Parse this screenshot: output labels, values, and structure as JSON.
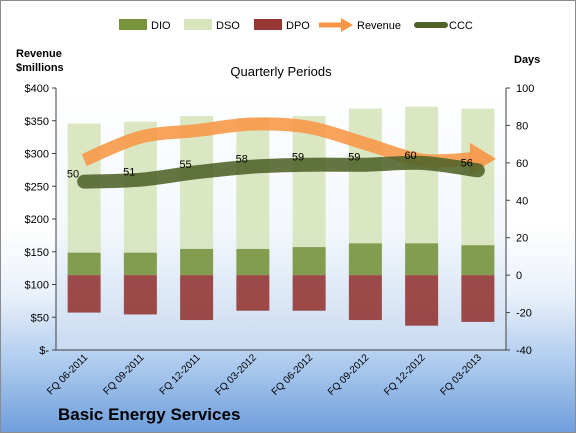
{
  "chart_data": {
    "type": "bar",
    "subtitle": "Quarterly Periods",
    "left_axis": {
      "label_line1": "Revenue",
      "label_line2": "$millions",
      "ylim": [
        0,
        400
      ],
      "ticks": [
        "$-",
        "$50",
        "$100",
        "$150",
        "$200",
        "$250",
        "$300",
        "$350",
        "$400"
      ]
    },
    "right_axis": {
      "label": "Days",
      "ylim": [
        -40,
        100
      ],
      "ticks": [
        "-40",
        "-20",
        "0",
        "20",
        "40",
        "60",
        "80",
        "100"
      ]
    },
    "categories": [
      "FQ 06-2011",
      "FQ 09-2011",
      "FQ 12-2011",
      "FQ 03-2012",
      "FQ 06-2012",
      "FQ 09-2012",
      "FQ 12-2012",
      "FQ 03-2013"
    ],
    "series": [
      {
        "name": "DIO",
        "kind": "bar",
        "color": "#77933c",
        "axis": "days",
        "values": [
          12,
          12,
          14,
          14,
          15,
          17,
          17,
          16
        ]
      },
      {
        "name": "DSO",
        "kind": "bar",
        "color": "#d7e4bd",
        "axis": "days",
        "values": [
          69,
          70,
          71,
          70,
          70,
          72,
          73,
          73
        ]
      },
      {
        "name": "DPO",
        "kind": "bar",
        "color": "#953735",
        "axis": "days",
        "values": [
          -20,
          -21,
          -24,
          -19,
          -19,
          -24,
          -27,
          -25
        ]
      },
      {
        "name": "Revenue",
        "kind": "line",
        "color": "#f79646",
        "axis": "revenue",
        "values": [
          290,
          325,
          335,
          345,
          340,
          315,
          290,
          292
        ]
      },
      {
        "name": "CCC",
        "kind": "line",
        "color": "#4f6228",
        "axis": "days",
        "values": [
          50,
          51,
          55,
          58,
          59,
          59,
          60,
          56
        ]
      }
    ],
    "data_labels": [
      "50",
      "51",
      "55",
      "58",
      "59",
      "59",
      "60",
      "56"
    ],
    "legend_position": "top",
    "grid": false
  },
  "company": "Basic Energy Services"
}
